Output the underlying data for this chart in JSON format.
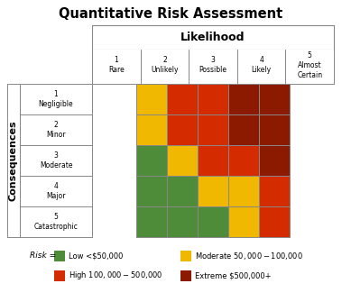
{
  "title": "Quantitative Risk Assessment",
  "likelihood_label": "Likelihood",
  "consequences_label": "Consequences",
  "likelihood_cols": [
    "1\nRare",
    "2\nUnlikely",
    "3\nPossible",
    "4\nLikely",
    "5\nAlmost\nCertain"
  ],
  "consequences_rows": [
    "5\nCatastrophic",
    "4\nMajor",
    "3\nModerate",
    "2\nMinor",
    "1\nNegligible"
  ],
  "colors": {
    "low": "#4e8c3a",
    "moderate": "#f0b800",
    "high": "#d42b00",
    "extreme": "#8b1a00"
  },
  "matrix": [
    [
      "moderate",
      "high",
      "high",
      "extreme",
      "extreme"
    ],
    [
      "moderate",
      "high",
      "high",
      "extreme",
      "extreme"
    ],
    [
      "low",
      "moderate",
      "high",
      "high",
      "extreme"
    ],
    [
      "low",
      "low",
      "moderate",
      "moderate",
      "high"
    ],
    [
      "low",
      "low",
      "low",
      "moderate",
      "high"
    ]
  ],
  "legend_items": [
    {
      "label": "Low <$50,000",
      "color": "#4e8c3a"
    },
    {
      "label": "Moderate $50,000- $100,000",
      "color": "#f0b800"
    },
    {
      "label": "High $100,000- $500,000",
      "color": "#d42b00"
    },
    {
      "label": "Extreme $500,000+",
      "color": "#8b1a00"
    }
  ],
  "risk_label": "Risk =",
  "grid_color": "#888888",
  "header_border_color": "#888888",
  "cell_edge_color": "#888888"
}
